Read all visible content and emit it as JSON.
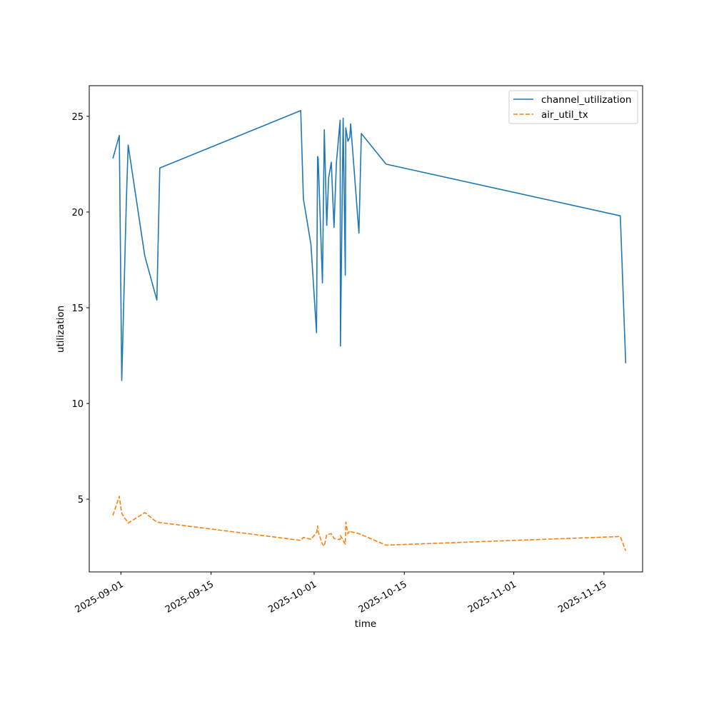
{
  "chart_data": {
    "type": "line",
    "xlabel": "time",
    "ylabel": "utilization",
    "x_ticks": [
      "2025-09-01",
      "2025-09-15",
      "2025-10-01",
      "2025-10-15",
      "2025-11-01",
      "2025-11-15"
    ],
    "y_ticks": [
      5,
      10,
      15,
      20,
      25
    ],
    "xlim": [
      "2025-08-27T02:00",
      "2025-11-21T00:00"
    ],
    "ylim": [
      1.2,
      26.6
    ],
    "grid": false,
    "legend_position": "upper right",
    "series": [
      {
        "name": "channel_utilization",
        "color": "#1f77b4",
        "style": "solid",
        "points": [
          [
            "2025-08-30T18:00",
            22.8
          ],
          [
            "2025-08-31T18:00",
            24.0
          ],
          [
            "2025-09-01T03:00",
            11.2
          ],
          [
            "2025-09-01T20:00",
            20.5
          ],
          [
            "2025-09-02T03:00",
            23.5
          ],
          [
            "2025-09-04T17:00",
            17.7
          ],
          [
            "2025-09-06T14:00",
            15.4
          ],
          [
            "2025-09-07T01:00",
            22.3
          ],
          [
            "2025-09-28T22:00",
            25.3
          ],
          [
            "2025-09-29T08:00",
            20.7
          ],
          [
            "2025-09-30T12:00",
            18.3
          ],
          [
            "2025-10-01T09:00",
            13.7
          ],
          [
            "2025-10-01T13:00",
            22.9
          ],
          [
            "2025-10-01T15:00",
            22.8
          ],
          [
            "2025-10-02T07:00",
            16.3
          ],
          [
            "2025-10-02T14:00",
            24.3
          ],
          [
            "2025-10-02T23:00",
            19.3
          ],
          [
            "2025-10-03T06:00",
            21.8
          ],
          [
            "2025-10-03T16:00",
            22.6
          ],
          [
            "2025-10-04T02:00",
            19.2
          ],
          [
            "2025-10-04T11:00",
            22.6
          ],
          [
            "2025-10-05T01:00",
            24.8
          ],
          [
            "2025-10-05T02:00",
            13.0
          ],
          [
            "2025-10-05T12:00",
            24.9
          ],
          [
            "2025-10-05T20:00",
            16.7
          ],
          [
            "2025-10-05T22:00",
            24.4
          ],
          [
            "2025-10-06T06:00",
            23.7
          ],
          [
            "2025-10-06T13:00",
            23.9
          ],
          [
            "2025-10-06T16:00",
            24.6
          ],
          [
            "2025-10-07T23:00",
            18.9
          ],
          [
            "2025-10-08T08:00",
            24.1
          ],
          [
            "2025-10-12T04:00",
            22.5
          ],
          [
            "2025-11-17T13:00",
            19.8
          ],
          [
            "2025-11-18T09:00",
            12.1
          ]
        ]
      },
      {
        "name": "air_util_tx",
        "color": "#ff7f0e",
        "style": "dashed",
        "points": [
          [
            "2025-08-30T18:00",
            4.15
          ],
          [
            "2025-08-31T18:00",
            5.15
          ],
          [
            "2025-09-01T03:00",
            4.25
          ],
          [
            "2025-09-02T03:00",
            3.75
          ],
          [
            "2025-09-04T17:00",
            4.3
          ],
          [
            "2025-09-06T14:00",
            3.8
          ],
          [
            "2025-09-28T22:00",
            2.85
          ],
          [
            "2025-09-29T08:00",
            3.0
          ],
          [
            "2025-09-30T12:00",
            2.9
          ],
          [
            "2025-10-01T09:00",
            3.25
          ],
          [
            "2025-10-01T13:00",
            3.6
          ],
          [
            "2025-10-01T15:00",
            3.3
          ],
          [
            "2025-10-02T07:00",
            2.65
          ],
          [
            "2025-10-02T14:00",
            2.55
          ],
          [
            "2025-10-02T23:00",
            3.15
          ],
          [
            "2025-10-03T16:00",
            3.2
          ],
          [
            "2025-10-04T02:00",
            2.95
          ],
          [
            "2025-10-04T11:00",
            2.9
          ],
          [
            "2025-10-05T01:00",
            2.9
          ],
          [
            "2025-10-05T02:00",
            3.1
          ],
          [
            "2025-10-05T12:00",
            2.85
          ],
          [
            "2025-10-05T20:00",
            2.65
          ],
          [
            "2025-10-05T22:00",
            3.8
          ],
          [
            "2025-10-06T06:00",
            3.2
          ],
          [
            "2025-10-06T13:00",
            3.35
          ],
          [
            "2025-10-06T16:00",
            3.3
          ],
          [
            "2025-10-07T23:00",
            3.2
          ],
          [
            "2025-10-12T04:00",
            2.6
          ],
          [
            "2025-11-17T13:00",
            3.05
          ],
          [
            "2025-11-18T09:00",
            2.3
          ]
        ]
      }
    ]
  }
}
